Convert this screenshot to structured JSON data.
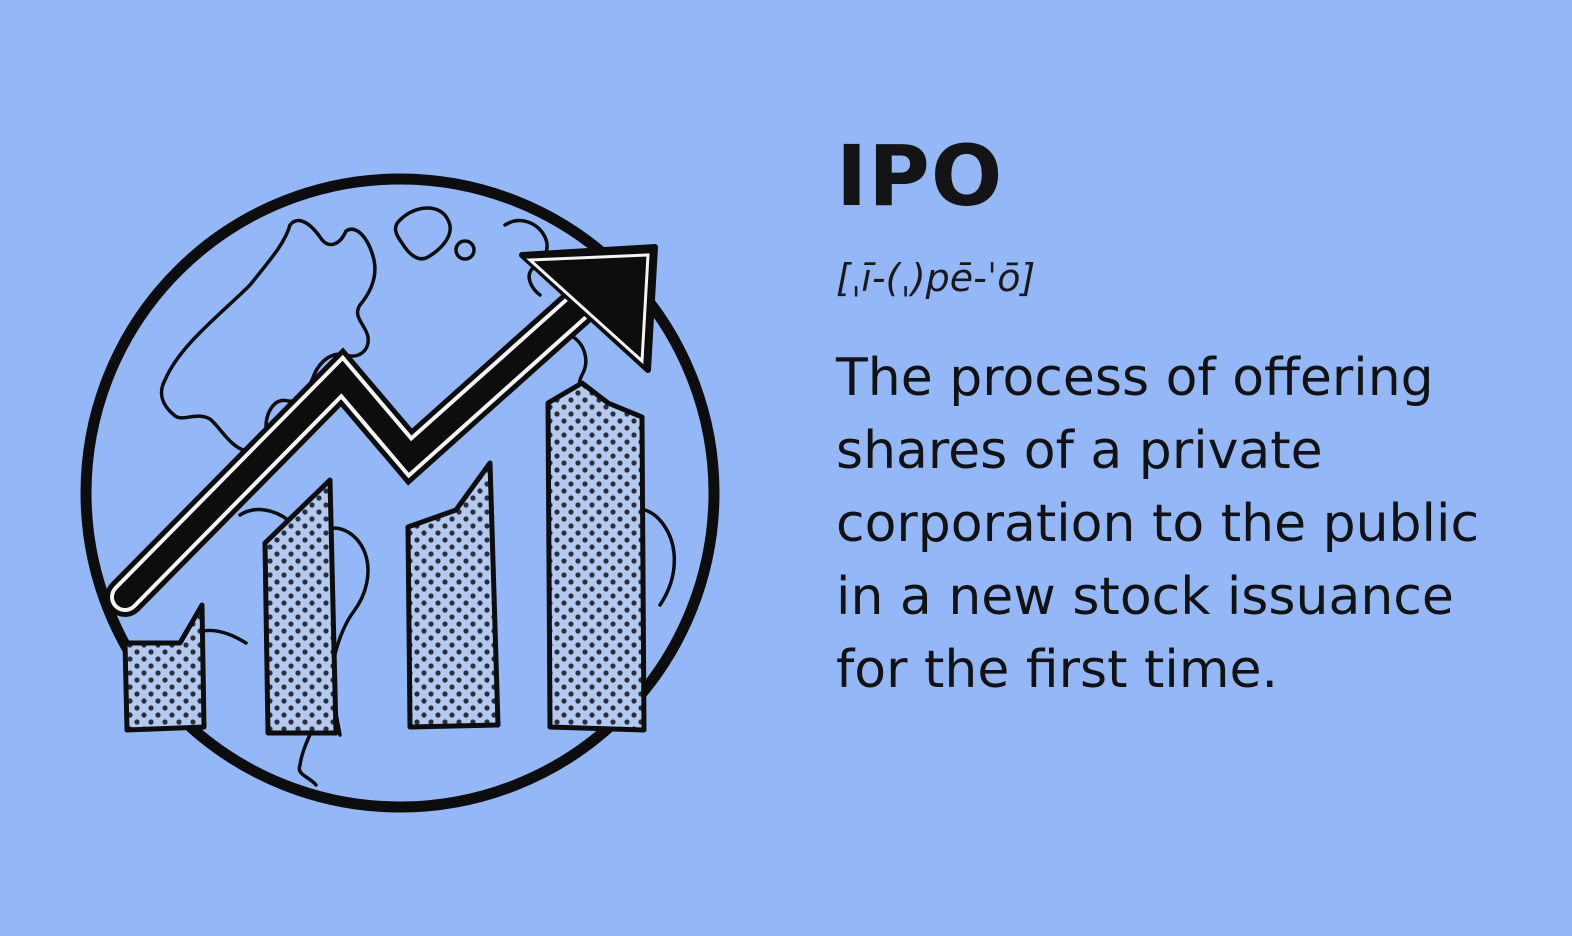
{
  "term": "IPO",
  "pronunciation": "[ˌī-(ˌ)pē-ˈō]",
  "definition": "The process of offering shares of a private corporation to the public in a new stock issuance for the first time.",
  "colors": {
    "background": "#94b8f7",
    "ink": "#141414",
    "bar_fill": "#b3c9f0"
  },
  "icons": [
    "globe-icon",
    "rising-arrow-icon",
    "bar-chart-icon"
  ]
}
